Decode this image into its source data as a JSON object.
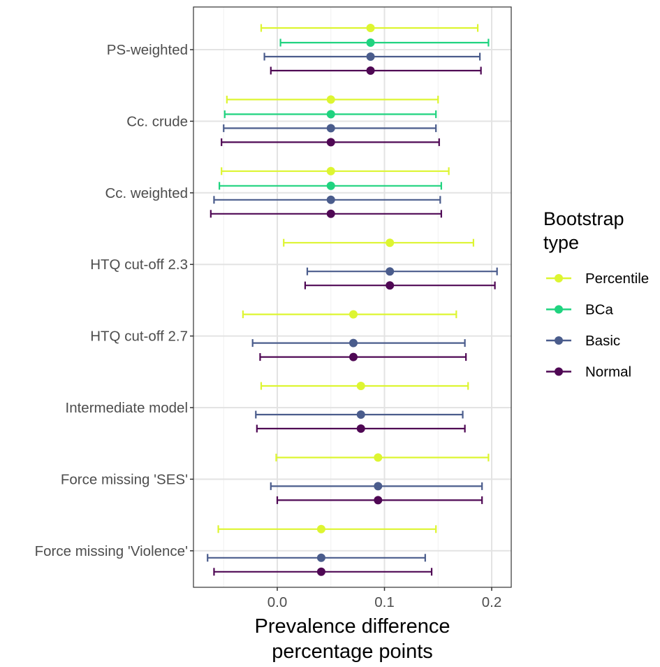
{
  "chart_data": {
    "type": "forest",
    "xlabel_lines": [
      "Prevalence difference",
      "percentage points"
    ],
    "xlim": [
      -0.08,
      0.22
    ],
    "x_ticks": [
      0.0,
      0.1,
      0.2
    ],
    "x_tick_labels": [
      "0.0",
      "0.1",
      "0.2"
    ],
    "grid": true,
    "legend_position": "right",
    "legend_title_lines": [
      "Bootstrap",
      "type"
    ],
    "series": [
      {
        "name": "Percentile",
        "color": "#DDF531"
      },
      {
        "name": "BCa",
        "color": "#1FD37F"
      },
      {
        "name": "Basic",
        "color": "#4A5C8C"
      },
      {
        "name": "Normal",
        "color": "#4F0854"
      }
    ],
    "categories": [
      {
        "label": "PS-weighted",
        "estimates": [
          {
            "series": "Percentile",
            "est": 0.087,
            "lo": -0.015,
            "hi": 0.187
          },
          {
            "series": "BCa",
            "est": 0.087,
            "lo": 0.003,
            "hi": 0.197
          },
          {
            "series": "Basic",
            "est": 0.087,
            "lo": -0.012,
            "hi": 0.189
          },
          {
            "series": "Normal",
            "est": 0.087,
            "lo": -0.006,
            "hi": 0.19
          }
        ]
      },
      {
        "label": "Cc. crude",
        "estimates": [
          {
            "series": "Percentile",
            "est": 0.05,
            "lo": -0.047,
            "hi": 0.15
          },
          {
            "series": "BCa",
            "est": 0.05,
            "lo": -0.049,
            "hi": 0.148
          },
          {
            "series": "Basic",
            "est": 0.05,
            "lo": -0.05,
            "hi": 0.148
          },
          {
            "series": "Normal",
            "est": 0.05,
            "lo": -0.052,
            "hi": 0.151
          }
        ]
      },
      {
        "label": "Cc. weighted",
        "estimates": [
          {
            "series": "Percentile",
            "est": 0.05,
            "lo": -0.052,
            "hi": 0.16
          },
          {
            "series": "BCa",
            "est": 0.05,
            "lo": -0.054,
            "hi": 0.153
          },
          {
            "series": "Basic",
            "est": 0.05,
            "lo": -0.059,
            "hi": 0.152
          },
          {
            "series": "Normal",
            "est": 0.05,
            "lo": -0.062,
            "hi": 0.153
          }
        ]
      },
      {
        "label": "HTQ cut-off 2.3",
        "estimates": [
          {
            "series": "Percentile",
            "est": 0.105,
            "lo": 0.006,
            "hi": 0.183
          },
          {
            "series": "Basic",
            "est": 0.105,
            "lo": 0.028,
            "hi": 0.205
          },
          {
            "series": "Normal",
            "est": 0.105,
            "lo": 0.026,
            "hi": 0.203
          }
        ]
      },
      {
        "label": "HTQ cut-off 2.7",
        "estimates": [
          {
            "series": "Percentile",
            "est": 0.071,
            "lo": -0.032,
            "hi": 0.167
          },
          {
            "series": "Basic",
            "est": 0.071,
            "lo": -0.023,
            "hi": 0.175
          },
          {
            "series": "Normal",
            "est": 0.071,
            "lo": -0.016,
            "hi": 0.176
          }
        ]
      },
      {
        "label": "Intermediate model",
        "estimates": [
          {
            "series": "Percentile",
            "est": 0.078,
            "lo": -0.015,
            "hi": 0.178
          },
          {
            "series": "Basic",
            "est": 0.078,
            "lo": -0.02,
            "hi": 0.173
          },
          {
            "series": "Normal",
            "est": 0.078,
            "lo": -0.019,
            "hi": 0.175
          }
        ]
      },
      {
        "label": "Force missing 'SES'",
        "estimates": [
          {
            "series": "Percentile",
            "est": 0.094,
            "lo": -0.001,
            "hi": 0.197
          },
          {
            "series": "Basic",
            "est": 0.094,
            "lo": -0.006,
            "hi": 0.191
          },
          {
            "series": "Normal",
            "est": 0.094,
            "lo": 0.0,
            "hi": 0.191
          }
        ]
      },
      {
        "label": "Force missing 'Violence'",
        "estimates": [
          {
            "series": "Percentile",
            "est": 0.041,
            "lo": -0.055,
            "hi": 0.148
          },
          {
            "series": "Basic",
            "est": 0.041,
            "lo": -0.065,
            "hi": 0.138
          },
          {
            "series": "Normal",
            "est": 0.041,
            "lo": -0.059,
            "hi": 0.144
          }
        ]
      }
    ]
  }
}
